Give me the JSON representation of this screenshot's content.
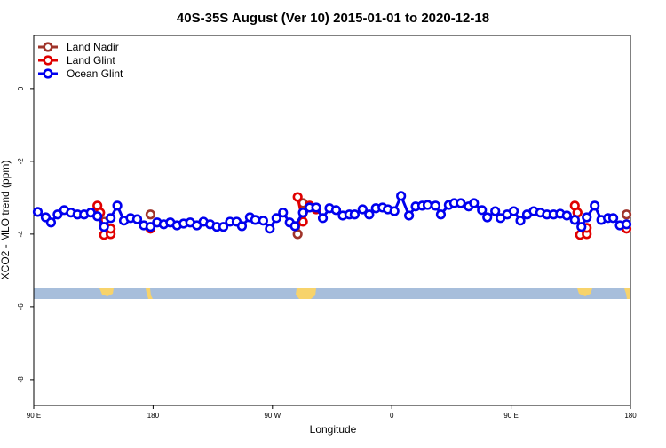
{
  "chart_data": {
    "type": "line",
    "title": "40S-35S August (Ver 10)   2015-01-01 to 2020-12-18",
    "x_label": "Longitude",
    "y_label": "XCO2 - MLO trend (ppm)",
    "xlim": [
      90,
      540
    ],
    "ylim": [
      -8.71,
      1.46
    ],
    "xticks": [
      {
        "value": 90,
        "label": "90 E"
      },
      {
        "value": 180,
        "label": "180"
      },
      {
        "value": 270,
        "label": "90 W"
      },
      {
        "value": 360,
        "label": "0"
      },
      {
        "value": 450,
        "label": "90 E"
      },
      {
        "value": 540,
        "label": "180"
      }
    ],
    "yticks": [
      0,
      -2,
      -4,
      -6,
      -8
    ],
    "legend": "top-left",
    "series": [
      {
        "name": "Land Nadir",
        "color": "#a0342a",
        "x": [
          140,
          143,
          null,
          178,
          null,
          289,
          293,
          null,
          500,
          null,
          537
        ],
        "values": [
          -3.41,
          -3.66,
          null,
          -3.46,
          null,
          -4.0,
          -3.15,
          null,
          -3.41,
          null,
          -3.46
        ]
      },
      {
        "name": "Land Glint",
        "color": "#e00000",
        "x": [
          138,
          140,
          143,
          148,
          148,
          null,
          178,
          null,
          289,
          293,
          298,
          303,
          null,
          498,
          500,
          502,
          507,
          507,
          null,
          537
        ],
        "values": [
          -3.22,
          -3.41,
          -4.02,
          -4.0,
          -3.85,
          null,
          -3.85,
          null,
          -2.98,
          -3.66,
          -3.22,
          -3.32,
          null,
          -3.22,
          -3.41,
          -4.02,
          -4.0,
          -3.83,
          null,
          -3.85
        ]
      },
      {
        "name": "Ocean Glint",
        "color": "#0000ee",
        "x": [
          93,
          99,
          103,
          108,
          113,
          118,
          123,
          128,
          133,
          138,
          143,
          148,
          153,
          158,
          163,
          168,
          173,
          178,
          183,
          188,
          193,
          198,
          203,
          208,
          213,
          218,
          223,
          228,
          233,
          238,
          243,
          247,
          253,
          257,
          263,
          268,
          273,
          278,
          283,
          287,
          293,
          298,
          303,
          308,
          313,
          318,
          323,
          328,
          332,
          338,
          343,
          348,
          353,
          357,
          362,
          367,
          373,
          378,
          383,
          387,
          393,
          397,
          403,
          407,
          412,
          418,
          422,
          428,
          432,
          438,
          442,
          447,
          452,
          457,
          462,
          467,
          472,
          477,
          482,
          487,
          492,
          498,
          503,
          507,
          513,
          518,
          523,
          527,
          532,
          537
        ],
        "values": [
          -3.39,
          -3.54,
          -3.68,
          -3.46,
          -3.34,
          -3.41,
          -3.46,
          -3.46,
          -3.41,
          -3.51,
          -3.8,
          -3.56,
          -3.22,
          -3.63,
          -3.56,
          -3.59,
          -3.76,
          -3.8,
          -3.68,
          -3.73,
          -3.68,
          -3.76,
          -3.71,
          -3.68,
          -3.76,
          -3.66,
          -3.73,
          -3.8,
          -3.8,
          -3.66,
          -3.66,
          -3.78,
          -3.54,
          -3.61,
          -3.63,
          -3.85,
          -3.56,
          -3.41,
          -3.68,
          -3.78,
          -3.41,
          -3.27,
          -3.27,
          -3.56,
          -3.29,
          -3.34,
          -3.49,
          -3.46,
          -3.46,
          -3.32,
          -3.46,
          -3.29,
          -3.27,
          -3.32,
          -3.37,
          -2.95,
          -3.49,
          -3.24,
          -3.22,
          -3.2,
          -3.22,
          -3.46,
          -3.2,
          -3.15,
          -3.15,
          -3.24,
          -3.15,
          -3.34,
          -3.54,
          -3.37,
          -3.56,
          -3.46,
          -3.37,
          -3.63,
          -3.46,
          -3.37,
          -3.41,
          -3.46,
          -3.46,
          -3.44,
          -3.49,
          -3.61,
          -3.8,
          -3.54,
          -3.22,
          -3.61,
          -3.56,
          -3.56,
          -3.76,
          -3.73
        ]
      }
    ]
  }
}
